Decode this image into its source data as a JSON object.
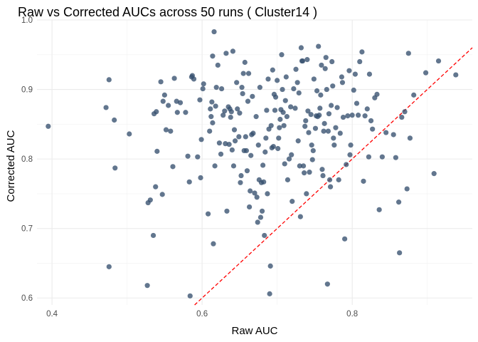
{
  "chart_data": {
    "type": "scatter",
    "title": "Raw vs Corrected AUCs across 50 runs ( Cluster14 )",
    "xlabel": "Raw AUC",
    "ylabel": "Corrected AUC",
    "xlim": [
      0.38,
      0.96
    ],
    "ylim": [
      0.59,
      1.0
    ],
    "xticks": [
      0.4,
      0.6,
      0.8
    ],
    "xtick_labels": [
      "0.4",
      "0.6",
      "0.8"
    ],
    "yticks": [
      0.6,
      0.7,
      0.8,
      0.9,
      1.0
    ],
    "ytick_labels": [
      "0.6",
      "0.7",
      "0.8",
      "0.9",
      "1.0"
    ],
    "grid": true,
    "point_color": "#36506e",
    "reference_line": {
      "type": "y=x",
      "color": "#ff0000",
      "style": "dashed"
    },
    "points": [
      [
        0.395,
        0.847
      ],
      [
        0.472,
        0.874
      ],
      [
        0.476,
        0.914
      ],
      [
        0.476,
        0.645
      ],
      [
        0.483,
        0.856
      ],
      [
        0.484,
        0.787
      ],
      [
        0.503,
        0.836
      ],
      [
        0.527,
        0.618
      ],
      [
        0.528,
        0.737
      ],
      [
        0.531,
        0.741
      ],
      [
        0.535,
        0.69
      ],
      [
        0.536,
        0.865
      ],
      [
        0.538,
        0.76
      ],
      [
        0.539,
        0.868
      ],
      [
        0.54,
        0.811
      ],
      [
        0.545,
        0.911
      ],
      [
        0.547,
        0.749
      ],
      [
        0.548,
        0.883
      ],
      [
        0.55,
        0.892
      ],
      [
        0.552,
        0.842
      ],
      [
        0.555,
        0.877
      ],
      [
        0.558,
        0.84
      ],
      [
        0.561,
        0.789
      ],
      [
        0.563,
        0.916
      ],
      [
        0.566,
        0.883
      ],
      [
        0.567,
        0.867
      ],
      [
        0.571,
        0.881
      ],
      [
        0.578,
        0.867
      ],
      [
        0.581,
        0.804
      ],
      [
        0.583,
        0.767
      ],
      [
        0.584,
        0.603
      ],
      [
        0.586,
        0.918
      ],
      [
        0.587,
        0.92
      ],
      [
        0.589,
        0.915
      ],
      [
        0.594,
        0.803
      ],
      [
        0.597,
        0.885
      ],
      [
        0.598,
        0.773
      ],
      [
        0.599,
        0.828
      ],
      [
        0.601,
        0.901
      ],
      [
        0.602,
        0.908
      ],
      [
        0.608,
        0.721
      ],
      [
        0.61,
        0.84
      ],
      [
        0.611,
        0.872
      ],
      [
        0.612,
        0.861
      ],
      [
        0.613,
        0.882
      ],
      [
        0.614,
        0.948
      ],
      [
        0.614,
        0.852
      ],
      [
        0.615,
        0.678
      ],
      [
        0.616,
        0.983
      ],
      [
        0.617,
        0.79
      ],
      [
        0.618,
        0.876
      ],
      [
        0.619,
        0.903
      ],
      [
        0.621,
        0.935
      ],
      [
        0.623,
        0.823
      ],
      [
        0.625,
        0.807
      ],
      [
        0.626,
        0.901
      ],
      [
        0.628,
        0.863
      ],
      [
        0.63,
        0.869
      ],
      [
        0.631,
        0.822
      ],
      [
        0.632,
        0.952
      ],
      [
        0.633,
        0.725
      ],
      [
        0.635,
        0.875
      ],
      [
        0.636,
        0.821
      ],
      [
        0.637,
        0.872
      ],
      [
        0.638,
        0.86
      ],
      [
        0.639,
        0.868
      ],
      [
        0.64,
        0.813
      ],
      [
        0.641,
        0.955
      ],
      [
        0.642,
        0.79
      ],
      [
        0.643,
        0.842
      ],
      [
        0.644,
        0.826
      ],
      [
        0.646,
        0.91
      ],
      [
        0.647,
        0.872
      ],
      [
        0.649,
        0.832
      ],
      [
        0.65,
        0.866
      ],
      [
        0.651,
        0.766
      ],
      [
        0.652,
        0.776
      ],
      [
        0.653,
        0.903
      ],
      [
        0.654,
        0.894
      ],
      [
        0.655,
        0.923
      ],
      [
        0.656,
        0.812
      ],
      [
        0.657,
        0.939
      ],
      [
        0.658,
        0.832
      ],
      [
        0.659,
        0.812
      ],
      [
        0.66,
        0.783
      ],
      [
        0.661,
        0.883
      ],
      [
        0.662,
        0.923
      ],
      [
        0.663,
        0.731
      ],
      [
        0.664,
        0.754
      ],
      [
        0.665,
        0.805
      ],
      [
        0.666,
        0.835
      ],
      [
        0.667,
        0.89
      ],
      [
        0.668,
        0.837
      ],
      [
        0.67,
        0.751
      ],
      [
        0.672,
        0.861
      ],
      [
        0.673,
        0.745
      ],
      [
        0.674,
        0.709
      ],
      [
        0.675,
        0.82
      ],
      [
        0.676,
        0.77
      ],
      [
        0.677,
        0.903
      ],
      [
        0.678,
        0.716
      ],
      [
        0.679,
        0.766
      ],
      [
        0.68,
        0.725
      ],
      [
        0.681,
        0.791
      ],
      [
        0.682,
        0.767
      ],
      [
        0.683,
        0.69
      ],
      [
        0.684,
        0.81
      ],
      [
        0.685,
        0.83
      ],
      [
        0.686,
        0.87
      ],
      [
        0.687,
        0.75
      ],
      [
        0.688,
        0.915
      ],
      [
        0.689,
        0.843
      ],
      [
        0.69,
        0.606
      ],
      [
        0.691,
        0.646
      ],
      [
        0.692,
        0.848
      ],
      [
        0.693,
        0.816
      ],
      [
        0.694,
        0.928
      ],
      [
        0.695,
        0.818
      ],
      [
        0.696,
        0.893
      ],
      [
        0.697,
        0.87
      ],
      [
        0.698,
        0.889
      ],
      [
        0.7,
        0.913
      ],
      [
        0.701,
        0.815
      ],
      [
        0.702,
        0.83
      ],
      [
        0.703,
        0.845
      ],
      [
        0.704,
        0.857
      ],
      [
        0.705,
        0.871
      ],
      [
        0.706,
        0.95
      ],
      [
        0.707,
        0.9
      ],
      [
        0.708,
        0.867
      ],
      [
        0.709,
        0.848
      ],
      [
        0.71,
        0.793
      ],
      [
        0.711,
        0.884
      ],
      [
        0.712,
        0.918
      ],
      [
        0.713,
        0.861
      ],
      [
        0.714,
        0.77
      ],
      [
        0.716,
        0.8
      ],
      [
        0.718,
        0.875
      ],
      [
        0.719,
        0.806
      ],
      [
        0.72,
        0.739
      ],
      [
        0.722,
        0.901
      ],
      [
        0.724,
        0.873
      ],
      [
        0.725,
        0.929
      ],
      [
        0.727,
        0.91
      ],
      [
        0.728,
        0.826
      ],
      [
        0.729,
        0.895
      ],
      [
        0.73,
        0.79
      ],
      [
        0.731,
        0.717
      ],
      [
        0.732,
        0.96
      ],
      [
        0.733,
        0.941
      ],
      [
        0.734,
        0.941
      ],
      [
        0.735,
        0.79
      ],
      [
        0.736,
        0.78
      ],
      [
        0.737,
        0.847
      ],
      [
        0.738,
        0.855
      ],
      [
        0.739,
        0.75
      ],
      [
        0.74,
        0.943
      ],
      [
        0.741,
        0.869
      ],
      [
        0.742,
        0.838
      ],
      [
        0.743,
        0.781
      ],
      [
        0.745,
        0.864
      ],
      [
        0.746,
        0.82
      ],
      [
        0.747,
        0.799
      ],
      [
        0.748,
        0.812
      ],
      [
        0.749,
        0.915
      ],
      [
        0.751,
        0.844
      ],
      [
        0.752,
        0.862
      ],
      [
        0.753,
        0.898
      ],
      [
        0.754,
        0.861
      ],
      [
        0.755,
        0.962
      ],
      [
        0.756,
        0.863
      ],
      [
        0.757,
        0.873
      ],
      [
        0.758,
        0.892
      ],
      [
        0.759,
        0.935
      ],
      [
        0.76,
        0.785
      ],
      [
        0.761,
        0.776
      ],
      [
        0.762,
        0.84
      ],
      [
        0.763,
        0.851
      ],
      [
        0.764,
        0.93
      ],
      [
        0.765,
        0.946
      ],
      [
        0.766,
        0.9
      ],
      [
        0.767,
        0.62
      ],
      [
        0.768,
        0.84
      ],
      [
        0.769,
        0.865
      ],
      [
        0.77,
        0.77
      ],
      [
        0.771,
        0.76
      ],
      [
        0.772,
        0.877
      ],
      [
        0.773,
        0.94
      ],
      [
        0.774,
        0.905
      ],
      [
        0.775,
        0.83
      ],
      [
        0.776,
        0.82
      ],
      [
        0.778,
        0.845
      ],
      [
        0.78,
        0.874
      ],
      [
        0.782,
        0.77
      ],
      [
        0.784,
        0.837
      ],
      [
        0.786,
        0.918
      ],
      [
        0.787,
        0.91
      ],
      [
        0.788,
        0.86
      ],
      [
        0.79,
        0.685
      ],
      [
        0.792,
        0.792
      ],
      [
        0.794,
        0.862
      ],
      [
        0.796,
        0.927
      ],
      [
        0.797,
        0.806
      ],
      [
        0.798,
        0.82
      ],
      [
        0.8,
        0.863
      ],
      [
        0.802,
        0.899
      ],
      [
        0.804,
        0.922
      ],
      [
        0.806,
        0.88
      ],
      [
        0.808,
        0.863
      ],
      [
        0.81,
        0.94
      ],
      [
        0.813,
        0.954
      ],
      [
        0.815,
        0.768
      ],
      [
        0.817,
        0.862
      ],
      [
        0.82,
        0.872
      ],
      [
        0.822,
        0.803
      ],
      [
        0.823,
        0.922
      ],
      [
        0.825,
        0.855
      ],
      [
        0.827,
        0.843
      ],
      [
        0.83,
        0.888
      ],
      [
        0.833,
        0.893
      ],
      [
        0.836,
        0.727
      ],
      [
        0.84,
        0.803
      ],
      [
        0.845,
        0.838
      ],
      [
        0.855,
        0.835
      ],
      [
        0.858,
        0.802
      ],
      [
        0.862,
        0.738
      ],
      [
        0.863,
        0.665
      ],
      [
        0.866,
        0.86
      ],
      [
        0.87,
        0.868
      ],
      [
        0.873,
        0.757
      ],
      [
        0.875,
        0.952
      ],
      [
        0.877,
        0.83
      ],
      [
        0.882,
        0.892
      ],
      [
        0.898,
        0.924
      ],
      [
        0.909,
        0.779
      ],
      [
        0.915,
        0.941
      ],
      [
        0.938,
        0.921
      ]
    ]
  }
}
